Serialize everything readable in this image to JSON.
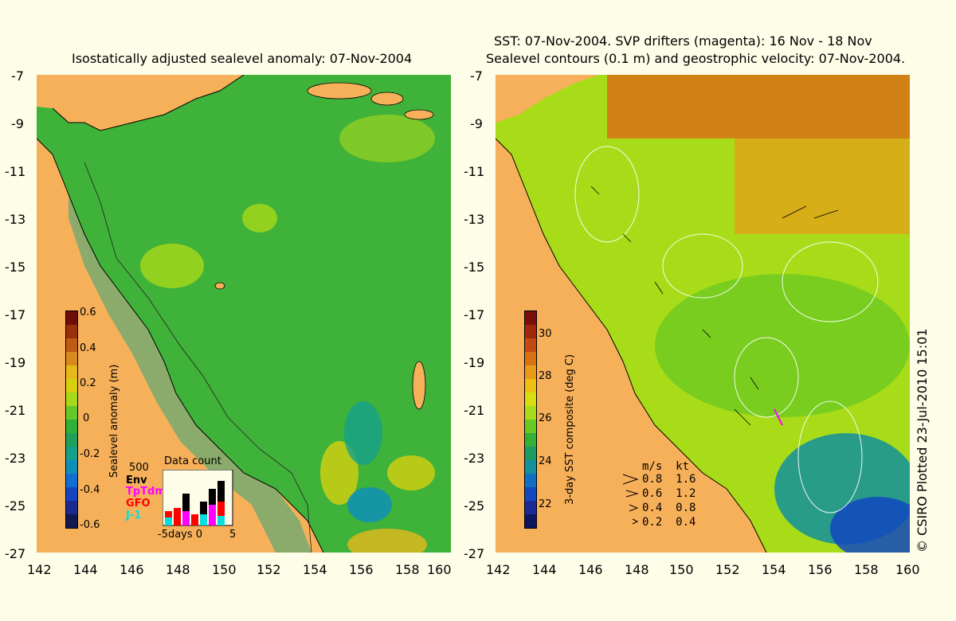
{
  "left": {
    "title": "Isostatically adjusted sealevel anomaly: 07-Nov-2004",
    "colorbar": {
      "label": "Sealevel anomaly (m)",
      "ticks": [
        "0.6",
        "0.4",
        "0.2",
        "0",
        "-0.2",
        "-0.4",
        "-0.6"
      ],
      "colors": [
        "#6b0d08",
        "#9a2f0c",
        "#c05a14",
        "#d98a1c",
        "#e6b81c",
        "#d6d010",
        "#a8d81a",
        "#64c82a",
        "#2fb039",
        "#1fa05a",
        "#16a08c",
        "#0f8fb8",
        "#0f6ed0",
        "#1444c0",
        "#1a2a90",
        "#101a50"
      ]
    },
    "count_legend": {
      "scale": "500",
      "title": "Data count",
      "entries": [
        {
          "label": "Env",
          "color": "#000000"
        },
        {
          "label": "TpTdm",
          "color": "#ff00ff"
        },
        {
          "label": "GFO",
          "color": "#ff0000"
        },
        {
          "label": "J-1",
          "color": "#00e0e0"
        }
      ],
      "xaxis": "-5days 0",
      "xend": "5"
    }
  },
  "right": {
    "title_line1": "SST: 07-Nov-2004. SVP drifters (magenta): 16 Nov - 18 Nov",
    "title_line2": "Sealevel contours (0.1 m) and geostrophic velocity: 07-Nov-2004.",
    "colorbar": {
      "label": "3-day SST composite (deg C)",
      "ticks": [
        "30",
        "28",
        "26",
        "24",
        "22"
      ],
      "colors": [
        "#7a0e08",
        "#a0280a",
        "#c24a10",
        "#d87214",
        "#e89a18",
        "#f0c010",
        "#d8dc10",
        "#a8dc18",
        "#6ac822",
        "#34b034",
        "#1c9c60",
        "#12909c",
        "#0e70c4",
        "#1248c0",
        "#1a2a98",
        "#0e1660"
      ]
    },
    "velocity_legend": {
      "header": "m/s  kt",
      "rows": [
        "0.8  1.6",
        "0.6  1.2",
        "0.4  0.8",
        "0.2  0.4"
      ]
    }
  },
  "axes": {
    "lat_ticks": [
      "-7",
      "-9",
      "-11",
      "-13",
      "-15",
      "-17",
      "-19",
      "-21",
      "-23",
      "-25",
      "-27"
    ],
    "lon_ticks": [
      "142",
      "144",
      "146",
      "148",
      "150",
      "152",
      "154",
      "156",
      "158",
      "160"
    ]
  },
  "copyright": "© CSIRO Plotted 23-Jul-2010 15:01",
  "colors": {
    "land": "#f7b05a",
    "ocean_green": "#3fb23a",
    "background": "#fdfde8"
  }
}
